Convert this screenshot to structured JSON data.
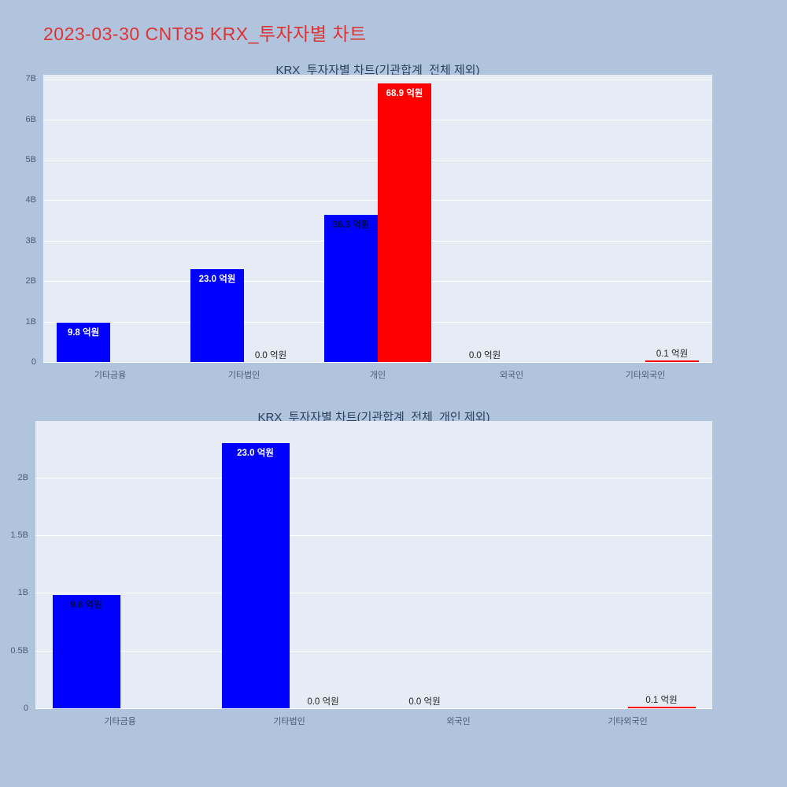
{
  "page": {
    "title": "2023-03-30 CNT85 KRX_투자자별 차트",
    "title_color": "#dd3333",
    "background": "#b0c4de"
  },
  "style": {
    "plot_bg": "#e5ecf6",
    "grid_color": "#ffffff",
    "axis_text_color": "#4a5a78",
    "chart_title_color": "#2a3f5f",
    "bar_blue": "#0000ff",
    "bar_red": "#ff0000"
  },
  "chart_data": [
    {
      "type": "bar",
      "title": "KRX_투자자별 차트(기관합계_전체 제외)",
      "unit": "억원",
      "categories": [
        "기타금융",
        "기타법인",
        "개인",
        "외국인",
        "기타외국인"
      ],
      "value_to_axis": 0.1,
      "ylim": [
        0,
        7.1
      ],
      "yticks": [
        {
          "value": 0,
          "label": "0"
        },
        {
          "value": 1,
          "label": "1B"
        },
        {
          "value": 2,
          "label": "2B"
        },
        {
          "value": 3,
          "label": "3B"
        },
        {
          "value": 4,
          "label": "4B"
        },
        {
          "value": 5,
          "label": "5B"
        },
        {
          "value": 6,
          "label": "6B"
        },
        {
          "value": 7,
          "label": "7B"
        }
      ],
      "bars": [
        {
          "category": "기타금융",
          "cat_index": 0,
          "series": "blue",
          "value": 9.8,
          "label": "9.8 억원",
          "label_pos": "inside",
          "label_color": "#ffffff"
        },
        {
          "category": "기타법인",
          "cat_index": 1,
          "series": "blue",
          "value": 23.0,
          "label": "23.0 억원",
          "label_pos": "inside",
          "label_color": "#ffffff"
        },
        {
          "category": "기타법인",
          "cat_index": 1,
          "series": "red",
          "value": 0.0,
          "label": "0.0 억원",
          "label_pos": "outside",
          "label_color": "#222222"
        },
        {
          "category": "개인",
          "cat_index": 2,
          "series": "blue",
          "value": 36.3,
          "label": "36.3 억원",
          "label_pos": "inside",
          "label_color": "#000b3c"
        },
        {
          "category": "개인",
          "cat_index": 2,
          "series": "red",
          "value": 68.9,
          "label": "68.9 억원",
          "label_pos": "inside",
          "label_color": "#ffffff"
        },
        {
          "category": "외국인",
          "cat_index": 3,
          "series": "blue",
          "value": 0.0,
          "label": "0.0 억원",
          "label_pos": "outside",
          "label_color": "#222222"
        },
        {
          "category": "기타외국인",
          "cat_index": 4,
          "series": "red",
          "value": 0.1,
          "label": "0.1 억원",
          "label_pos": "outside",
          "label_color": "#222222"
        }
      ]
    },
    {
      "type": "bar",
      "title": "KRX_투자자별 차트(기관합계_전체_개인 제외)",
      "unit": "억원",
      "categories": [
        "기타금융",
        "기타법인",
        "외국인",
        "기타외국인"
      ],
      "value_to_axis": 0.1,
      "ylim": [
        0,
        2.49
      ],
      "yticks": [
        {
          "value": 0,
          "label": "0"
        },
        {
          "value": 0.5,
          "label": "0.5B"
        },
        {
          "value": 1,
          "label": "1B"
        },
        {
          "value": 1.5,
          "label": "1.5B"
        },
        {
          "value": 2,
          "label": "2B"
        }
      ],
      "bars": [
        {
          "category": "기타금융",
          "cat_index": 0,
          "series": "blue",
          "value": 9.8,
          "label": "9.8 억원",
          "label_pos": "inside",
          "label_color": "#000b3c"
        },
        {
          "category": "기타법인",
          "cat_index": 1,
          "series": "blue",
          "value": 23.0,
          "label": "23.0 억원",
          "label_pos": "inside",
          "label_color": "#ffffff"
        },
        {
          "category": "기타법인",
          "cat_index": 1,
          "series": "red",
          "value": 0.0,
          "label": "0.0 억원",
          "label_pos": "outside",
          "label_color": "#222222"
        },
        {
          "category": "외국인",
          "cat_index": 2,
          "series": "blue",
          "value": 0.0,
          "label": "0.0 억원",
          "label_pos": "outside",
          "label_color": "#222222"
        },
        {
          "category": "기타외국인",
          "cat_index": 3,
          "series": "red",
          "value": 0.1,
          "label": "0.1 억원",
          "label_pos": "outside",
          "label_color": "#222222"
        }
      ]
    }
  ]
}
